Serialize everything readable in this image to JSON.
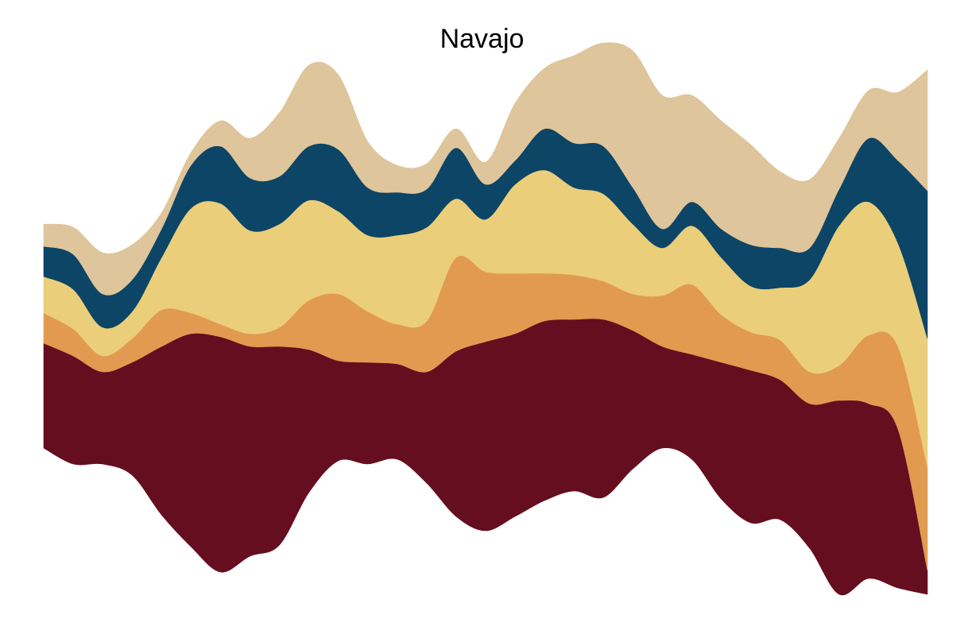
{
  "chart_data": {
    "type": "area",
    "subtype": "streamgraph",
    "title": "Navajo",
    "xlabel": "",
    "ylabel": "",
    "axes_visible": false,
    "grid": false,
    "legend": "none",
    "x": [
      0,
      1,
      2,
      3,
      4,
      5,
      6,
      7,
      8,
      9,
      10,
      11,
      12,
      13,
      14,
      15,
      16,
      17,
      18,
      19,
      20,
      21,
      22,
      23,
      24,
      25,
      26,
      27,
      28,
      29,
      30
    ],
    "baseline": [
      -64,
      -84,
      -84,
      -98,
      -148,
      -188,
      -220,
      -200,
      -186,
      -120,
      -80,
      -84,
      -78,
      -108,
      -150,
      -168,
      -150,
      -130,
      -118,
      -126,
      -90,
      -64,
      -78,
      -128,
      -158,
      -154,
      -190,
      -248,
      -228,
      -240,
      -248
    ],
    "series": [
      {
        "color": "#650e20",
        "values": [
          132,
          136,
          116,
          142,
          212,
          268,
          296,
          264,
          250,
          180,
          126,
          128,
          120,
          140,
          208,
          238,
          230,
          226,
          216,
          224,
          174,
          128,
          132,
          172,
          192,
          176,
          182,
          244,
          220,
          200,
          30
        ]
      },
      {
        "color": "#e29a50",
        "values": [
          38,
          34,
          20,
          30,
          46,
          26,
          16,
          16,
          24,
          62,
          84,
          64,
          50,
          64,
          118,
          88,
          76,
          60,
          56,
          48,
          46,
          64,
          88,
          60,
          48,
          50,
          40,
          44,
          86,
          104,
          130
        ]
      },
      {
        "color": "#ebce7a",
        "values": [
          46,
          50,
          36,
          34,
          66,
          132,
          152,
          130,
          130,
          126,
          104,
          96,
          112,
          118,
          74,
          66,
          112,
          130,
          110,
          110,
          88,
          60,
          74,
          72,
          58,
          66,
          116,
          176,
          168,
          130,
          162
        ]
      },
      {
        "color": "#0c4566",
        "values": [
          38,
          44,
          42,
          40,
          36,
          54,
          72,
          66,
          60,
          68,
          78,
          60,
          54,
          48,
          64,
          44,
          30,
          52,
          56,
          60,
          46,
          24,
          30,
          36,
          52,
          50,
          40,
          46,
          80,
          104,
          186
        ]
      },
      {
        "color": "#dfc59b",
        "values": [
          28,
          34,
          52,
          44,
          20,
          16,
          32,
          50,
          80,
          102,
          94,
          58,
          34,
          32,
          24,
          28,
          72,
          76,
          110,
          130,
          172,
          168,
          134,
          136,
          126,
          96,
          86,
          64,
          60,
          86,
          152
        ]
      }
    ]
  }
}
